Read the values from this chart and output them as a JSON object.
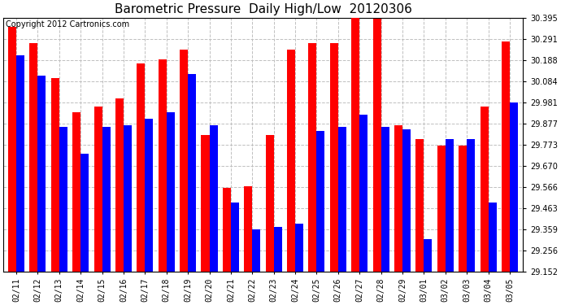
{
  "title": "Barometric Pressure  Daily High/Low  20120306",
  "copyright": "Copyright 2012 Cartronics.com",
  "dates": [
    "02/11",
    "02/12",
    "02/13",
    "02/14",
    "02/15",
    "02/16",
    "02/17",
    "02/18",
    "02/19",
    "02/20",
    "02/21",
    "02/22",
    "02/23",
    "02/24",
    "02/25",
    "02/26",
    "02/27",
    "02/28",
    "02/29",
    "03/01",
    "03/02",
    "03/03",
    "03/04",
    "03/05"
  ],
  "highs": [
    30.35,
    30.27,
    30.1,
    29.93,
    29.96,
    30.0,
    30.17,
    30.19,
    30.24,
    29.82,
    29.56,
    29.57,
    29.82,
    30.24,
    30.27,
    30.27,
    30.395,
    30.39,
    29.87,
    29.8,
    29.77,
    29.77,
    29.96,
    30.28
  ],
  "lows": [
    30.21,
    30.11,
    29.86,
    29.73,
    29.86,
    29.87,
    29.9,
    29.93,
    30.12,
    29.87,
    29.49,
    29.36,
    29.37,
    29.385,
    29.84,
    29.86,
    29.92,
    29.86,
    29.85,
    29.31,
    29.8,
    29.8,
    29.49,
    29.98
  ],
  "high_color": "#ff0000",
  "low_color": "#0000ff",
  "background_color": "#ffffff",
  "grid_color": "#c0c0c0",
  "ylim_min": 29.152,
  "ylim_max": 30.395,
  "yticks": [
    29.152,
    29.256,
    29.359,
    29.463,
    29.566,
    29.67,
    29.773,
    29.877,
    29.981,
    30.084,
    30.188,
    30.291,
    30.395
  ],
  "title_fontsize": 11,
  "copyright_fontsize": 7,
  "tick_fontsize": 7,
  "bar_width": 0.38
}
